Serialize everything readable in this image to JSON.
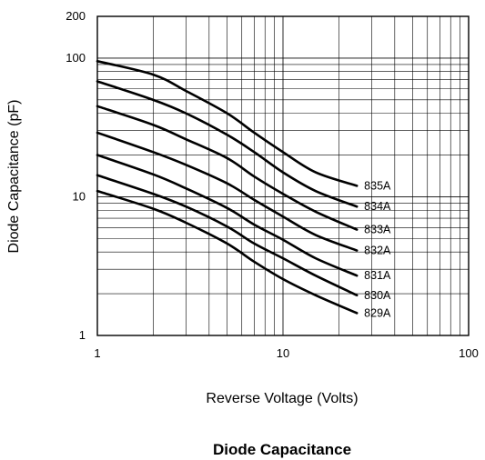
{
  "chart_data": {
    "type": "line",
    "title": "Diode Capacitance",
    "xlabel": "Reverse Voltage (Volts)",
    "ylabel": "Diode Capacitance (pF)",
    "xscale": "log",
    "yscale": "log",
    "xlim": [
      1,
      100
    ],
    "ylim": [
      1,
      200
    ],
    "xticks": [
      "1",
      "10",
      "100"
    ],
    "yticks": [
      "1",
      "10",
      "100",
      "200"
    ],
    "grid": true,
    "legend": "inline labels at right end of each curve",
    "line_color": "#000000",
    "series": [
      {
        "name": "835A",
        "x": [
          1,
          2,
          3,
          5,
          7,
          10,
          15,
          25
        ],
        "y": [
          95,
          76,
          58,
          40,
          29,
          21,
          15,
          12
        ]
      },
      {
        "name": "834A",
        "x": [
          1,
          2,
          3,
          5,
          7,
          10,
          15,
          25
        ],
        "y": [
          68,
          50,
          40,
          28,
          21,
          15,
          11,
          8.5
        ]
      },
      {
        "name": "833A",
        "x": [
          1,
          2,
          3,
          5,
          7,
          10,
          15,
          25
        ],
        "y": [
          45,
          33,
          26,
          19,
          14,
          10.5,
          7.8,
          5.8
        ]
      },
      {
        "name": "832A",
        "x": [
          1,
          2,
          3,
          5,
          7,
          10,
          15,
          25
        ],
        "y": [
          29,
          21,
          17,
          12.5,
          9.5,
          7.2,
          5.3,
          4.1
        ]
      },
      {
        "name": "831A",
        "x": [
          1,
          2,
          3,
          5,
          7,
          10,
          15,
          25
        ],
        "y": [
          20,
          14.5,
          11.5,
          8.3,
          6.3,
          4.9,
          3.6,
          2.7
        ]
      },
      {
        "name": "830A",
        "x": [
          1,
          2,
          3,
          5,
          7,
          10,
          15,
          25
        ],
        "y": [
          14.3,
          10.5,
          8.5,
          6.1,
          4.6,
          3.6,
          2.7,
          1.95
        ]
      },
      {
        "name": "829A",
        "x": [
          1,
          2,
          3,
          5,
          7,
          10,
          15,
          25
        ],
        "y": [
          11,
          8.2,
          6.5,
          4.6,
          3.4,
          2.55,
          1.95,
          1.45
        ]
      }
    ]
  }
}
